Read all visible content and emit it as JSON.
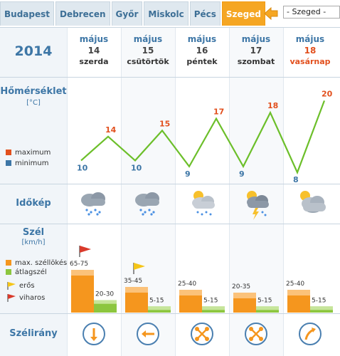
{
  "tabs": [
    {
      "label": "Budapest",
      "active": false
    },
    {
      "label": "Debrecen",
      "active": false
    },
    {
      "label": "Győr",
      "active": false
    },
    {
      "label": "Miskolc",
      "active": false
    },
    {
      "label": "Pécs",
      "active": false
    },
    {
      "label": "Szeged",
      "active": true
    }
  ],
  "city_select": {
    "value": "- Szeged -"
  },
  "year": "2014",
  "days": [
    {
      "month": "május",
      "day": "14",
      "weekday": "szerda",
      "sunday": false
    },
    {
      "month": "május",
      "day": "15",
      "weekday": "csütörtök",
      "sunday": false
    },
    {
      "month": "május",
      "day": "16",
      "weekday": "péntek",
      "sunday": false
    },
    {
      "month": "május",
      "day": "17",
      "weekday": "szombat",
      "sunday": false
    },
    {
      "month": "május",
      "day": "18",
      "weekday": "vasárnap",
      "sunday": true
    }
  ],
  "temperature": {
    "title": "Hőmérséklet",
    "unit": "[°C]",
    "legend_max": "maximum",
    "legend_min": "minimum",
    "max_color": "#e2501e",
    "min_color": "#3d76a6",
    "line_color": "#6cbf2a"
  },
  "chart_data": {
    "type": "line",
    "series": [
      {
        "name": "maximum",
        "values": [
          14,
          15,
          17,
          18,
          20
        ]
      },
      {
        "name": "minimum",
        "values": [
          10,
          10,
          9,
          9,
          8
        ]
      }
    ],
    "categories": [
      "május 14",
      "május 15",
      "május 16",
      "május 17",
      "május 18"
    ]
  },
  "idokep": {
    "title": "Időkép",
    "icons": [
      "rain-shower-cloud-icon",
      "rain-shower-cloud-icon",
      "sun-cloud-rain-icon",
      "sun-thunderstorm-icon",
      "sun-heavy-cloud-icon"
    ]
  },
  "wind": {
    "title": "Szél",
    "unit": "[km/h]",
    "legend_gust": "max. széllökés",
    "legend_avg": "átlagszél",
    "legend_strong": "erős",
    "legend_storm": "viharos",
    "gust_color": "#f5961e",
    "avg_color": "#8cc63f",
    "days": [
      {
        "gust_label": "65-75",
        "gust_max": 75,
        "avg_label": "20-30",
        "avg_max": 30,
        "flag": "red-flag-icon"
      },
      {
        "gust_label": "35-45",
        "gust_max": 45,
        "avg_label": "5-15",
        "avg_max": 15,
        "flag": "yellow-flag-icon"
      },
      {
        "gust_label": "25-40",
        "gust_max": 40,
        "avg_label": "5-15",
        "avg_max": 15,
        "flag": ""
      },
      {
        "gust_label": "20-35",
        "gust_max": 35,
        "avg_label": "5-15",
        "avg_max": 15,
        "flag": ""
      },
      {
        "gust_label": "25-40",
        "gust_max": 40,
        "avg_label": "5-15",
        "avg_max": 15,
        "flag": ""
      }
    ]
  },
  "direction": {
    "title": "Szélirány",
    "icons": [
      "arrow-vertical-icon",
      "arrow-left-icon",
      "variable-direction-icon",
      "variable-direction-icon",
      "arrow-up-right-icon"
    ]
  }
}
